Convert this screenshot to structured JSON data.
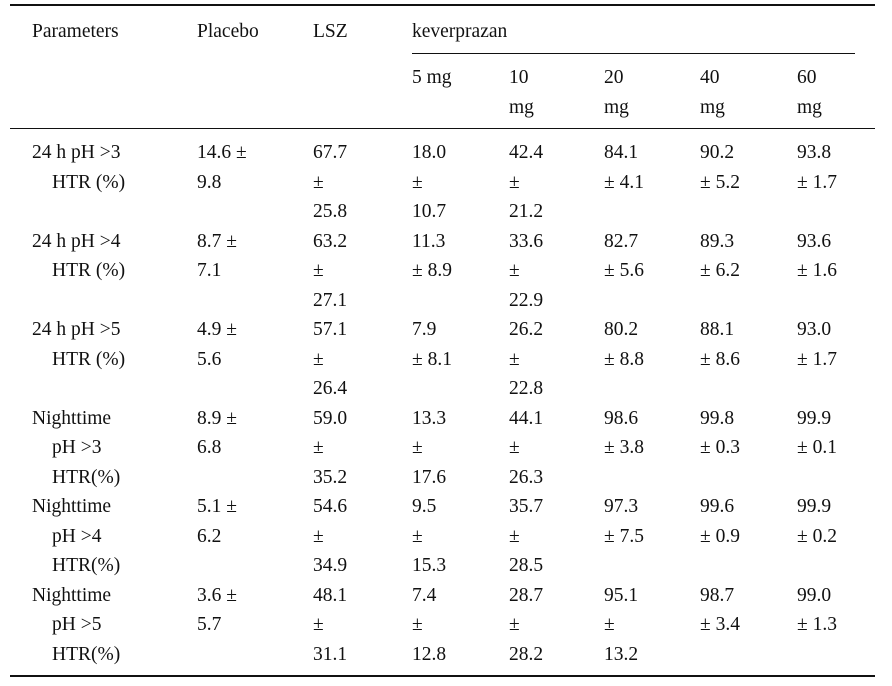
{
  "table": {
    "headers": {
      "parameters": "Parameters",
      "placebo": "Placebo",
      "lsz": "LSZ",
      "group": "keverprazan",
      "doses": [
        "5 mg",
        "10\nmg",
        "20\nmg",
        "40\nmg",
        "60\nmg"
      ]
    },
    "rows": [
      {
        "label": "24 h pH >3\nHTR (%)",
        "values": [
          "14.6 ±\n9.8",
          "67.7\n±\n25.8",
          "18.0\n±\n10.7",
          "42.4\n±\n21.2",
          "84.1\n± 4.1",
          "90.2\n± 5.2",
          "93.8\n± 1.7"
        ]
      },
      {
        "label": "24 h pH >4\nHTR (%)",
        "values": [
          "8.7 ±\n7.1",
          "63.2\n±\n27.1",
          "11.3\n± 8.9",
          "33.6\n±\n22.9",
          "82.7\n± 5.6",
          "89.3\n± 6.2",
          "93.6\n± 1.6"
        ]
      },
      {
        "label": "24 h pH >5\nHTR (%)",
        "values": [
          "4.9 ±\n5.6",
          "57.1\n±\n26.4",
          "7.9\n± 8.1",
          "26.2\n±\n22.8",
          "80.2\n± 8.8",
          "88.1\n± 8.6",
          "93.0\n± 1.7"
        ]
      },
      {
        "label": "Nighttime\npH >3\nHTR(%)",
        "values": [
          "8.9 ±\n6.8",
          "59.0\n±\n35.2",
          "13.3\n±\n17.6",
          "44.1\n±\n26.3",
          "98.6\n± 3.8",
          "99.8\n± 0.3",
          "99.9\n± 0.1"
        ]
      },
      {
        "label": "Nighttime\npH >4\nHTR(%)",
        "values": [
          "5.1 ±\n6.2",
          "54.6\n±\n34.9",
          "9.5\n±\n15.3",
          "35.7\n±\n28.5",
          "97.3\n± 7.5",
          "99.6\n± 0.9",
          "99.9\n± 0.2"
        ]
      },
      {
        "label": "Nighttime\npH >5\nHTR(%)",
        "values": [
          "3.6 ±\n5.7",
          "48.1\n±\n31.1",
          "7.4\n±\n12.8",
          "28.7\n±\n28.2",
          "95.1\n±\n13.2",
          "98.7\n± 3.4",
          "99.0\n± 1.3"
        ]
      }
    ]
  }
}
